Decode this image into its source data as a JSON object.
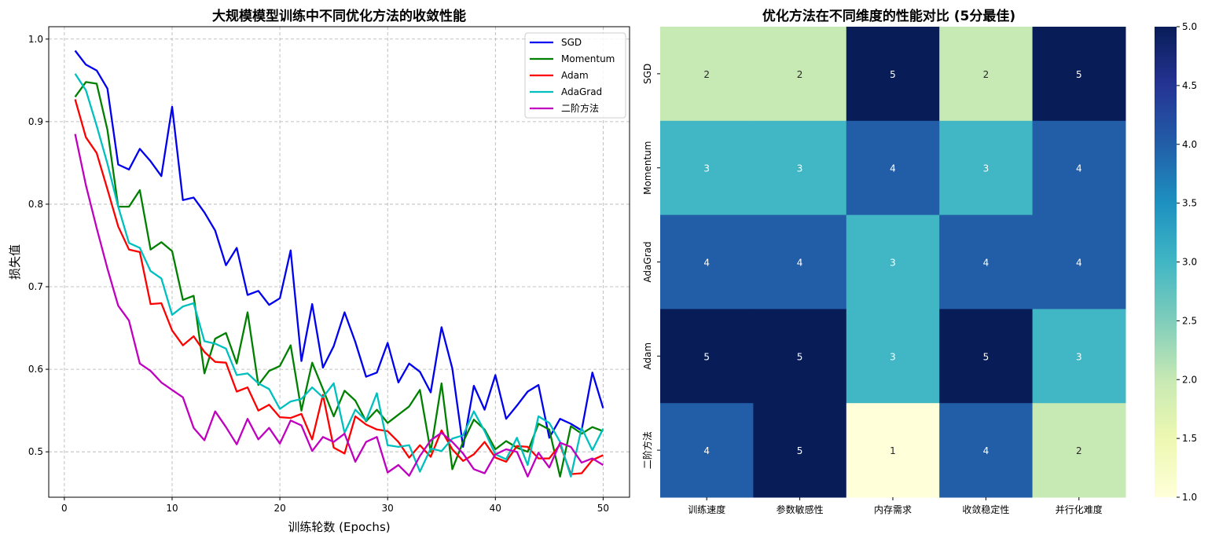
{
  "chart_data": [
    {
      "type": "line",
      "title": "大规模模型训练中不同优化方法的收敛性能",
      "xlabel": "训练轮数 (Epochs)",
      "ylabel": "损失值",
      "xlim": [
        -1.45,
        52.45
      ],
      "ylim": [
        0.445,
        1.015
      ],
      "xticks": [
        0,
        10,
        20,
        30,
        40,
        50
      ],
      "yticks": [
        0.5,
        0.6,
        0.7,
        0.8,
        0.9,
        1.0
      ],
      "ytick_labels": [
        "0.5",
        "0.6",
        "0.7",
        "0.8",
        "0.9",
        "1.0"
      ],
      "grid": true,
      "legend_position": "top-right",
      "x": [
        1,
        2,
        3,
        4,
        5,
        6,
        7,
        8,
        9,
        10,
        11,
        12,
        13,
        14,
        15,
        16,
        17,
        18,
        19,
        20,
        21,
        22,
        23,
        24,
        25,
        26,
        27,
        28,
        29,
        30,
        31,
        32,
        33,
        34,
        35,
        36,
        37,
        38,
        39,
        40,
        41,
        42,
        43,
        44,
        45,
        46,
        47,
        48,
        49,
        50
      ],
      "series": [
        {
          "name": "SGD",
          "color": "#0000ee",
          "values": [
            0.986,
            0.969,
            0.962,
            0.94,
            0.848,
            0.842,
            0.867,
            0.852,
            0.834,
            0.918,
            0.805,
            0.808,
            0.79,
            0.768,
            0.726,
            0.747,
            0.69,
            0.695,
            0.678,
            0.686,
            0.744,
            0.61,
            0.679,
            0.602,
            0.628,
            0.669,
            0.633,
            0.591,
            0.596,
            0.632,
            0.584,
            0.607,
            0.597,
            0.572,
            0.651,
            0.601,
            0.506,
            0.58,
            0.551,
            0.593,
            0.54,
            0.556,
            0.573,
            0.581,
            0.517,
            0.54,
            0.534,
            0.526,
            0.596,
            0.553
          ]
        },
        {
          "name": "Momentum",
          "color": "#008000",
          "values": [
            0.93,
            0.948,
            0.946,
            0.89,
            0.797,
            0.797,
            0.817,
            0.745,
            0.754,
            0.743,
            0.684,
            0.689,
            0.595,
            0.637,
            0.644,
            0.607,
            0.669,
            0.581,
            0.598,
            0.604,
            0.629,
            0.55,
            0.608,
            0.576,
            0.543,
            0.574,
            0.562,
            0.537,
            0.551,
            0.535,
            0.545,
            0.555,
            0.575,
            0.5,
            0.583,
            0.479,
            0.512,
            0.539,
            0.527,
            0.503,
            0.513,
            0.505,
            0.5,
            0.534,
            0.527,
            0.47,
            0.531,
            0.522,
            0.53,
            0.525
          ]
        },
        {
          "name": "Adam",
          "color": "#ff0000",
          "values": [
            0.927,
            0.881,
            0.862,
            0.818,
            0.773,
            0.745,
            0.742,
            0.679,
            0.68,
            0.647,
            0.629,
            0.64,
            0.621,
            0.609,
            0.608,
            0.573,
            0.578,
            0.55,
            0.557,
            0.542,
            0.541,
            0.546,
            0.515,
            0.569,
            0.505,
            0.498,
            0.543,
            0.533,
            0.527,
            0.525,
            0.512,
            0.493,
            0.508,
            0.494,
            0.526,
            0.503,
            0.489,
            0.497,
            0.512,
            0.493,
            0.488,
            0.507,
            0.506,
            0.492,
            0.492,
            0.509,
            0.473,
            0.474,
            0.49,
            0.496
          ]
        },
        {
          "name": "AdaGrad",
          "color": "#00bfbf",
          "values": [
            0.958,
            0.938,
            0.895,
            0.849,
            0.797,
            0.753,
            0.747,
            0.719,
            0.71,
            0.666,
            0.676,
            0.68,
            0.634,
            0.631,
            0.625,
            0.593,
            0.595,
            0.583,
            0.576,
            0.552,
            0.561,
            0.564,
            0.578,
            0.566,
            0.583,
            0.523,
            0.551,
            0.538,
            0.571,
            0.508,
            0.506,
            0.508,
            0.476,
            0.504,
            0.501,
            0.516,
            0.52,
            0.549,
            0.525,
            0.497,
            0.491,
            0.517,
            0.484,
            0.543,
            0.535,
            0.512,
            0.47,
            0.529,
            0.502,
            0.528
          ]
        },
        {
          "name": "二阶方法",
          "color": "#bf00bf",
          "values": [
            0.885,
            0.823,
            0.771,
            0.722,
            0.677,
            0.659,
            0.607,
            0.598,
            0.584,
            0.575,
            0.566,
            0.529,
            0.514,
            0.549,
            0.53,
            0.509,
            0.54,
            0.515,
            0.529,
            0.51,
            0.538,
            0.532,
            0.501,
            0.518,
            0.512,
            0.522,
            0.488,
            0.512,
            0.518,
            0.475,
            0.484,
            0.471,
            0.495,
            0.514,
            0.523,
            0.512,
            0.498,
            0.479,
            0.474,
            0.497,
            0.503,
            0.5,
            0.47,
            0.499,
            0.481,
            0.511,
            0.506,
            0.487,
            0.492,
            0.484
          ]
        }
      ]
    },
    {
      "type": "heatmap",
      "title": "优化方法在不同维度的性能对比 (5分最佳)",
      "columns": [
        "训练速度",
        "参数敏感性",
        "内存需求",
        "收敛稳定性",
        "并行化难度"
      ],
      "rows": [
        "SGD",
        "Momentum",
        "AdaGrad",
        "Adam",
        "二阶方法"
      ],
      "values": [
        [
          2,
          2,
          5,
          2,
          5
        ],
        [
          3,
          3,
          4,
          3,
          4
        ],
        [
          4,
          4,
          3,
          4,
          4
        ],
        [
          5,
          5,
          3,
          5,
          3
        ],
        [
          4,
          5,
          1,
          4,
          2
        ]
      ],
      "colormap": "YlGnBu",
      "vmin": 1,
      "vmax": 5,
      "colorbar_ticks": [
        1.0,
        1.5,
        2.0,
        2.5,
        3.0,
        3.5,
        4.0,
        4.5,
        5.0
      ],
      "colorbar_tick_labels": [
        "1.0",
        "1.5",
        "2.0",
        "2.5",
        "3.0",
        "3.5",
        "4.0",
        "4.5",
        "5.0"
      ],
      "colors": {
        "1": "#ffffd9",
        "2": "#c7e9b4",
        "3": "#41b6c4",
        "4": "#225ea8",
        "5": "#081d58"
      }
    }
  ]
}
